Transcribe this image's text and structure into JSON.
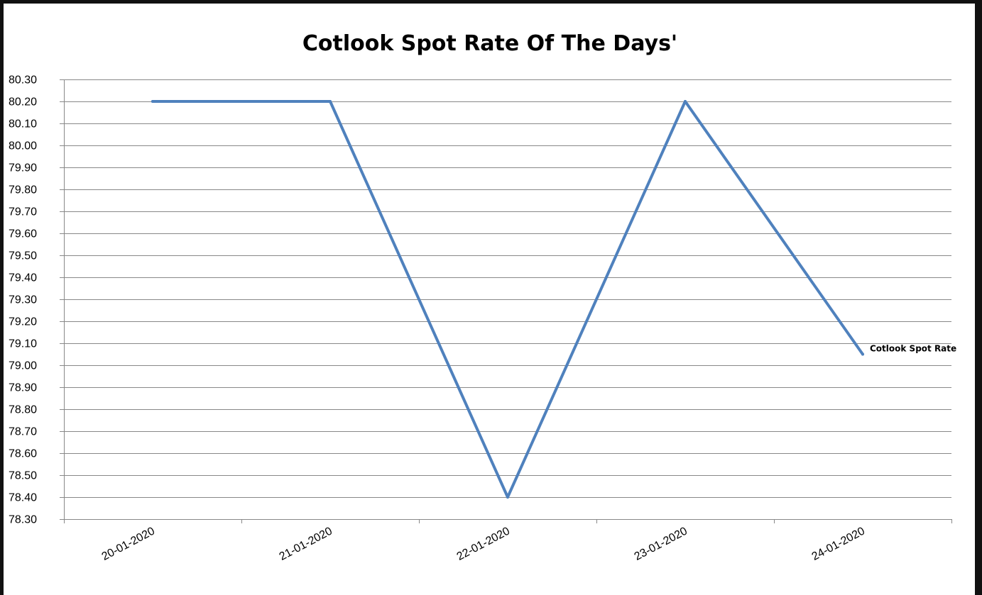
{
  "chart_data": {
    "type": "line",
    "title": "Cotlook Spot Rate Of The Days'",
    "xlabel": "",
    "ylabel": "",
    "categories": [
      "20-01-2020",
      "21-01-2020",
      "22-01-2020",
      "23-01-2020",
      "24-01-2020"
    ],
    "series": [
      {
        "name": "Cotlook Spot Rate",
        "values": [
          80.2,
          80.2,
          78.4,
          80.2,
          79.05
        ]
      }
    ],
    "ylim": [
      78.3,
      80.3
    ],
    "ytick_step": 0.1,
    "yticks": [
      "78.30",
      "78.40",
      "78.50",
      "78.60",
      "78.70",
      "78.80",
      "78.90",
      "79.00",
      "79.10",
      "79.20",
      "79.30",
      "79.40",
      "79.50",
      "79.60",
      "79.70",
      "79.80",
      "79.90",
      "80.00",
      "80.10",
      "80.20",
      "80.30"
    ],
    "grid": true,
    "legend": "end-of-line label",
    "line_color": "#4f81bd"
  }
}
